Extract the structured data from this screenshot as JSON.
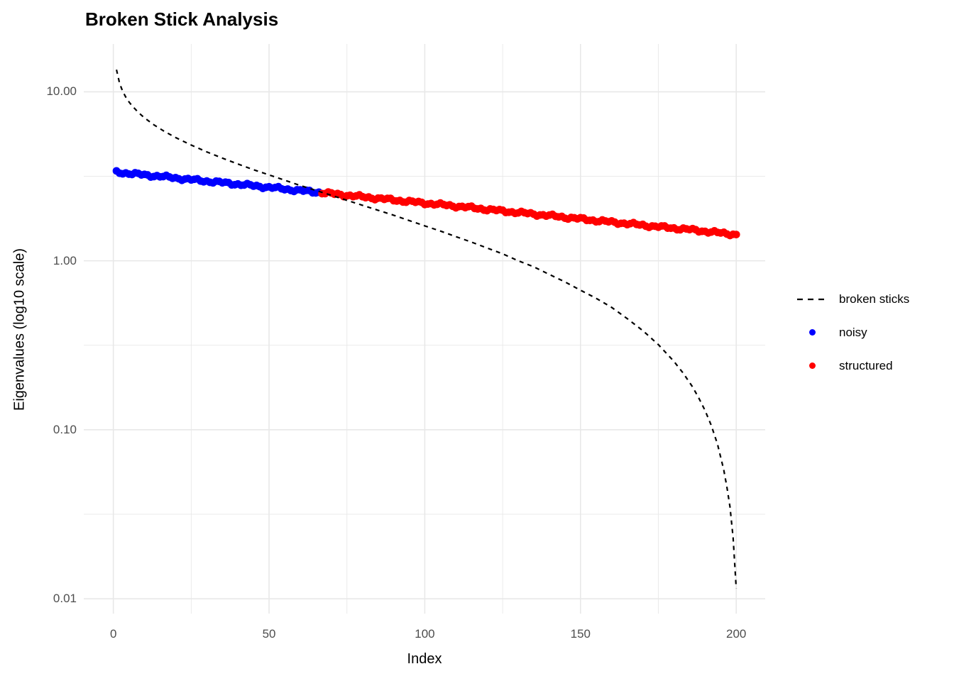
{
  "title": "Broken Stick Analysis",
  "legend": {
    "items": [
      {
        "label": "broken sticks",
        "key": "dashed-line",
        "color": "#000000"
      },
      {
        "label": "noisy",
        "key": "point",
        "color": "#0000FF"
      },
      {
        "label": "structured",
        "key": "point",
        "color": "#FF0000"
      }
    ]
  },
  "colors": {
    "noisy": "#0000FF",
    "structured": "#FF0000",
    "broken_sticks": "#000000",
    "grid": "#E8E8E8",
    "tick_text": "#4D4D4D",
    "background": "#FFFFFF"
  },
  "chart_data": {
    "type": "line+scatter",
    "title": "Broken Stick Analysis",
    "xlabel": "Index",
    "ylabel": "Eigenvalues (log10 scale)",
    "y_scale": "log10",
    "grid": "on",
    "legend_position": "right",
    "x_range": [
      -9.5,
      209.3
    ],
    "y_log_range": [
      -2.088,
      1.283
    ],
    "x_ticks": [
      0,
      50,
      100,
      150,
      200
    ],
    "x_minor_ticks": [
      25,
      75,
      125,
      175
    ],
    "y_ticks": [
      {
        "value": 10,
        "label": "10.00"
      },
      {
        "value": 1,
        "label": "1.00"
      },
      {
        "value": 0.1,
        "label": "0.10"
      },
      {
        "value": 0.01,
        "label": "0.01"
      }
    ],
    "y_minor_ticks": [
      3.162,
      0.3162,
      0.03162
    ],
    "series": [
      {
        "name": "broken sticks",
        "type": "line",
        "style": "dashed",
        "color": "#000000",
        "points": [
          [
            1,
            13.52
          ],
          [
            2,
            11.22
          ],
          [
            3,
            10.07
          ],
          [
            4,
            9.3
          ],
          [
            5,
            8.73
          ],
          [
            6,
            8.27
          ],
          [
            8,
            7.56
          ],
          [
            10,
            7.01
          ],
          [
            13,
            6.38
          ],
          [
            16,
            5.89
          ],
          [
            20,
            5.36
          ],
          [
            25,
            4.84
          ],
          [
            30,
            4.41
          ],
          [
            35,
            4.05
          ],
          [
            40,
            3.74
          ],
          [
            45,
            3.46
          ],
          [
            50,
            3.22
          ],
          [
            55,
            3.0
          ],
          [
            60,
            2.79
          ],
          [
            65,
            2.61
          ],
          [
            70,
            2.44
          ],
          [
            75,
            2.28
          ],
          [
            80,
            2.13
          ],
          [
            85,
            1.99
          ],
          [
            90,
            1.86
          ],
          [
            95,
            1.73
          ],
          [
            100,
            1.61
          ],
          [
            105,
            1.5
          ],
          [
            110,
            1.39
          ],
          [
            115,
            1.29
          ],
          [
            120,
            1.19
          ],
          [
            125,
            1.1
          ],
          [
            130,
            1.0
          ],
          [
            135,
            0.92
          ],
          [
            140,
            0.83
          ],
          [
            145,
            0.75
          ],
          [
            150,
            0.67
          ],
          [
            155,
            0.6
          ],
          [
            160,
            0.53
          ],
          [
            165,
            0.455
          ],
          [
            170,
            0.386
          ],
          [
            175,
            0.319
          ],
          [
            180,
            0.254
          ],
          [
            183,
            0.216
          ],
          [
            186,
            0.179
          ],
          [
            188,
            0.154
          ],
          [
            190,
            0.13
          ],
          [
            192,
            0.106
          ],
          [
            194,
            0.082
          ],
          [
            196,
            0.058
          ],
          [
            197,
            0.046
          ],
          [
            198,
            0.035
          ],
          [
            199,
            0.023
          ],
          [
            200,
            0.0115
          ]
        ]
      },
      {
        "name": "noisy",
        "type": "scatter",
        "color": "#0000FF",
        "index_start": 1,
        "index_end": 66,
        "anchors": [
          [
            1,
            3.35
          ],
          [
            5,
            3.29
          ],
          [
            10,
            3.22
          ],
          [
            15,
            3.16
          ],
          [
            20,
            3.09
          ],
          [
            25,
            3.02
          ],
          [
            30,
            2.96
          ],
          [
            35,
            2.9
          ],
          [
            40,
            2.84
          ],
          [
            45,
            2.78
          ],
          [
            50,
            2.72
          ],
          [
            55,
            2.66
          ],
          [
            60,
            2.6
          ],
          [
            66,
            2.54
          ]
        ]
      },
      {
        "name": "structured",
        "type": "scatter",
        "color": "#FF0000",
        "index_start": 67,
        "index_end": 200,
        "anchors": [
          [
            67,
            2.53
          ],
          [
            75,
            2.44
          ],
          [
            85,
            2.34
          ],
          [
            95,
            2.24
          ],
          [
            105,
            2.15
          ],
          [
            115,
            2.06
          ],
          [
            125,
            1.97
          ],
          [
            135,
            1.89
          ],
          [
            145,
            1.81
          ],
          [
            155,
            1.73
          ],
          [
            165,
            1.66
          ],
          [
            175,
            1.59
          ],
          [
            185,
            1.53
          ],
          [
            195,
            1.46
          ],
          [
            200,
            1.43
          ]
        ]
      }
    ]
  }
}
